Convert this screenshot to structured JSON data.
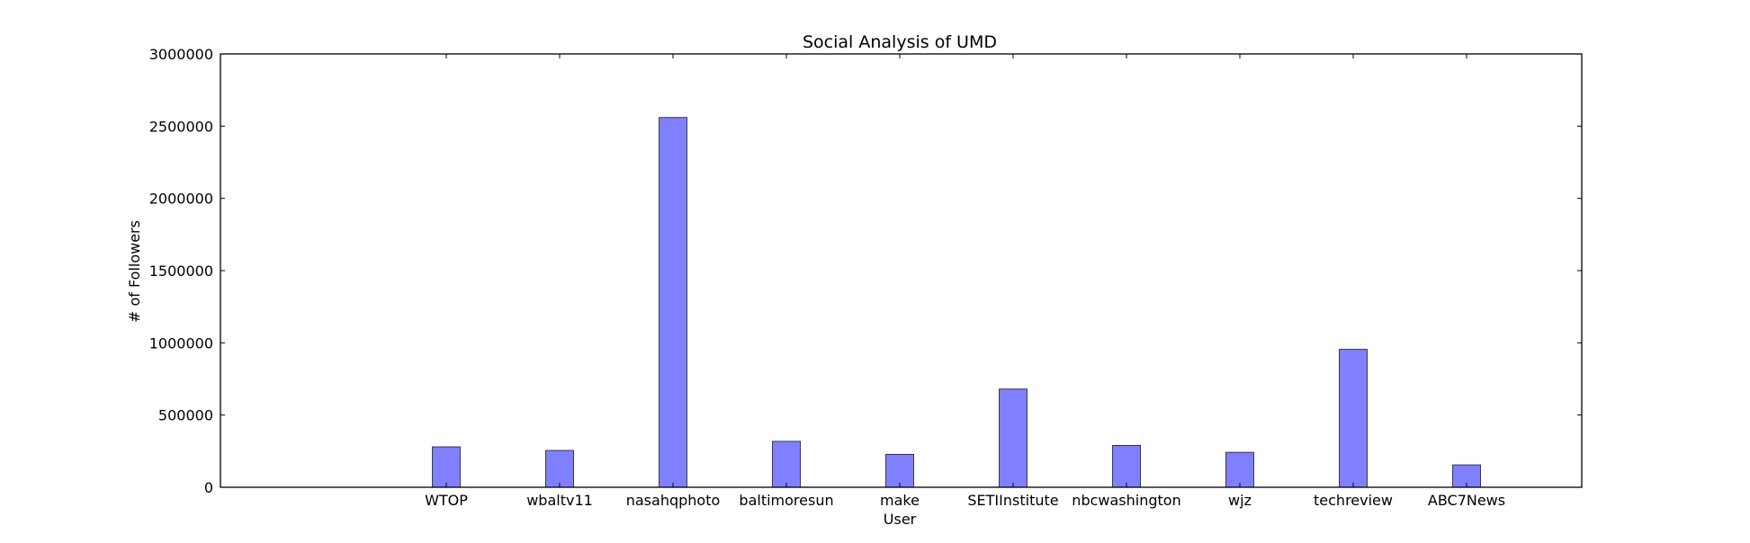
{
  "chart_data": {
    "type": "bar",
    "title": "Social Analysis of UMD",
    "xlabel": "User",
    "ylabel": "# of Followers",
    "categories": [
      "WTOP",
      "wbaltv11",
      "nasahqphoto",
      "baltimoresun",
      "make",
      "SETIInstitute",
      "nbcwashington",
      "wjz",
      "techreview",
      "ABC7News"
    ],
    "values": [
      280000,
      255000,
      2560000,
      318000,
      228000,
      680000,
      290000,
      242000,
      955000,
      155000
    ],
    "ylim": [
      0,
      3000000
    ],
    "yticks": [
      0,
      500000,
      1000000,
      1500000,
      2000000,
      2500000,
      3000000
    ],
    "grid": false,
    "legend": "none",
    "bar_color": "#8080ff",
    "bar_edge_color": "#1a1a1a"
  }
}
